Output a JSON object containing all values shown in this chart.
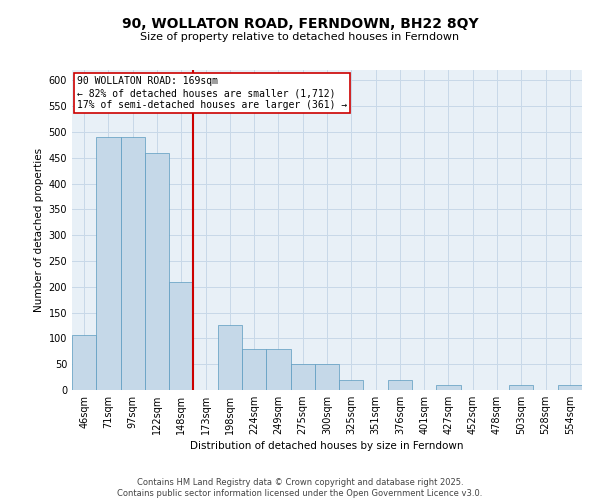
{
  "title": "90, WOLLATON ROAD, FERNDOWN, BH22 8QY",
  "subtitle": "Size of property relative to detached houses in Ferndown",
  "xlabel": "Distribution of detached houses by size in Ferndown",
  "ylabel": "Number of detached properties",
  "footer": "Contains HM Land Registry data © Crown copyright and database right 2025.\nContains public sector information licensed under the Open Government Licence v3.0.",
  "categories": [
    "46sqm",
    "71sqm",
    "97sqm",
    "122sqm",
    "148sqm",
    "173sqm",
    "198sqm",
    "224sqm",
    "249sqm",
    "275sqm",
    "300sqm",
    "325sqm",
    "351sqm",
    "376sqm",
    "401sqm",
    "427sqm",
    "452sqm",
    "478sqm",
    "503sqm",
    "528sqm",
    "554sqm"
  ],
  "values": [
    107,
    490,
    490,
    460,
    210,
    0,
    125,
    80,
    80,
    50,
    50,
    20,
    0,
    20,
    0,
    10,
    0,
    0,
    10,
    0,
    10
  ],
  "bar_color": "#c5d8e8",
  "bar_edgecolor": "#5a9abf",
  "annotation_label": "90 WOLLATON ROAD: 169sqm",
  "annotation_line1": "← 82% of detached houses are smaller (1,712)",
  "annotation_line2": "17% of semi-detached houses are larger (361) →",
  "annotation_box_color": "#cc0000",
  "vline_color": "#cc0000",
  "grid_color": "#c8d8e8",
  "background_color": "#e8f0f7",
  "ylim": [
    0,
    620
  ],
  "yticks": [
    0,
    50,
    100,
    150,
    200,
    250,
    300,
    350,
    400,
    450,
    500,
    550,
    600
  ],
  "title_fontsize": 10,
  "subtitle_fontsize": 8,
  "axis_label_fontsize": 7.5,
  "tick_fontsize": 7,
  "annotation_fontsize": 7,
  "footer_fontsize": 6
}
